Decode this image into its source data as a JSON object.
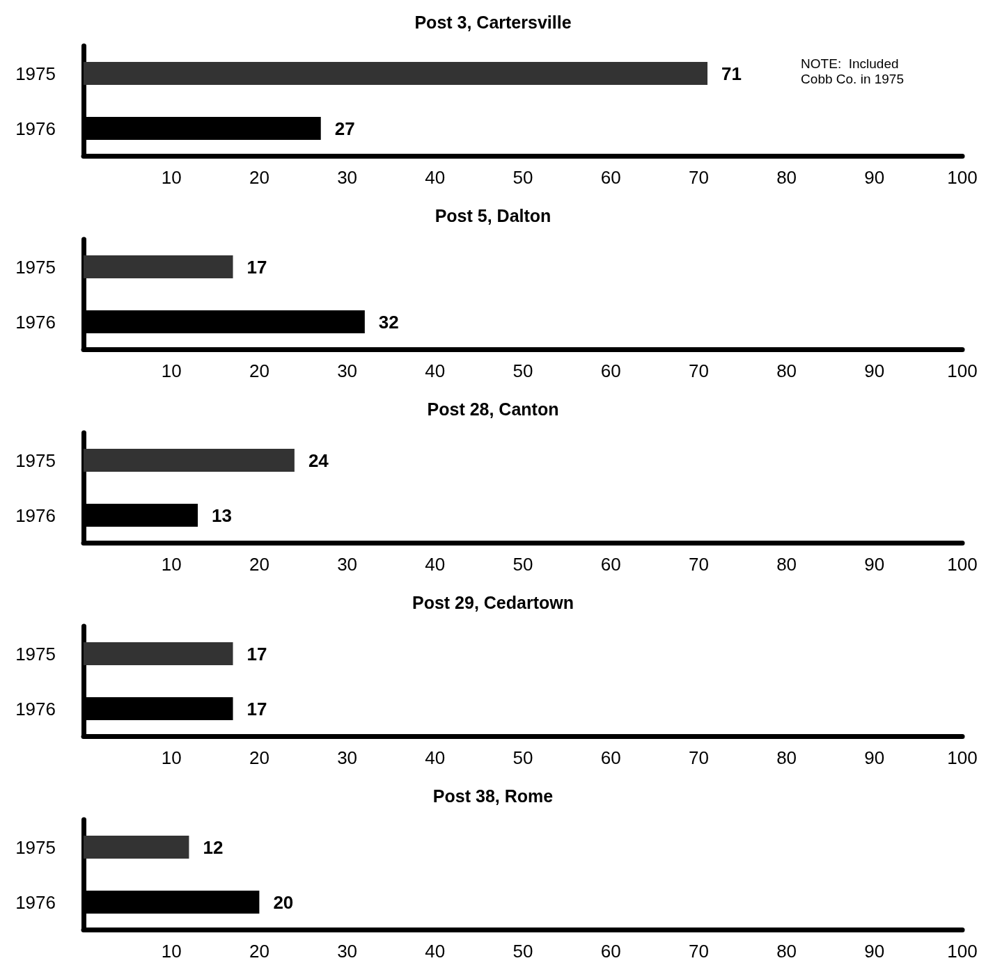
{
  "chart_data": [
    {
      "type": "bar",
      "orientation": "horizontal",
      "title": "Post 3, Cartersville",
      "categories": [
        "1975",
        "1976"
      ],
      "values": [
        71,
        27
      ],
      "colors": [
        "#333333",
        "#000000"
      ],
      "xlim": [
        0,
        100
      ],
      "xticks": [
        10,
        20,
        30,
        40,
        50,
        60,
        70,
        80,
        90,
        100
      ],
      "data_labels": true,
      "annotations": [
        "NOTE:  Included\nCobb Co. in 1975"
      ]
    },
    {
      "type": "bar",
      "orientation": "horizontal",
      "title": "Post 5, Dalton",
      "categories": [
        "1975",
        "1976"
      ],
      "values": [
        17,
        32
      ],
      "colors": [
        "#333333",
        "#000000"
      ],
      "xlim": [
        0,
        100
      ],
      "xticks": [
        10,
        20,
        30,
        40,
        50,
        60,
        70,
        80,
        90,
        100
      ],
      "data_labels": true
    },
    {
      "type": "bar",
      "orientation": "horizontal",
      "title": "Post 28, Canton",
      "categories": [
        "1975",
        "1976"
      ],
      "values": [
        24,
        13
      ],
      "colors": [
        "#333333",
        "#000000"
      ],
      "xlim": [
        0,
        100
      ],
      "xticks": [
        10,
        20,
        30,
        40,
        50,
        60,
        70,
        80,
        90,
        100
      ],
      "data_labels": true
    },
    {
      "type": "bar",
      "orientation": "horizontal",
      "title": "Post 29, Cedartown",
      "categories": [
        "1975",
        "1976"
      ],
      "values": [
        17,
        17
      ],
      "colors": [
        "#333333",
        "#000000"
      ],
      "xlim": [
        0,
        100
      ],
      "xticks": [
        10,
        20,
        30,
        40,
        50,
        60,
        70,
        80,
        90,
        100
      ],
      "data_labels": true
    },
    {
      "type": "bar",
      "orientation": "horizontal",
      "title": "Post 38, Rome",
      "categories": [
        "1975",
        "1976"
      ],
      "values": [
        12,
        20
      ],
      "colors": [
        "#333333",
        "#000000"
      ],
      "xlim": [
        0,
        100
      ],
      "xticks": [
        10,
        20,
        30,
        40,
        50,
        60,
        70,
        80,
        90,
        100
      ],
      "data_labels": true
    }
  ]
}
